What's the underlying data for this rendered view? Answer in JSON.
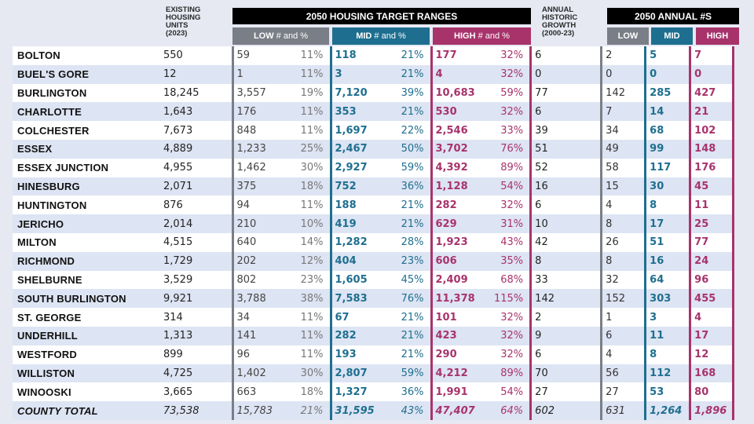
{
  "headers": {
    "existing": [
      "EXISTING",
      "HOUSING",
      "UNITS",
      "(2023)"
    ],
    "targets_band": "2050 HOUSING TARGET RANGES",
    "low_label": "LOW",
    "mid_label": "MID",
    "high_label": "HIGH",
    "num_and_pct": "# and %",
    "annual_historic": [
      "ANNUAL",
      "HISTORIC",
      "GROWTH",
      "(2000-23)"
    ],
    "annual_band": "2050 ANNUAL #S",
    "annual_low": "LOW",
    "annual_mid": "MID",
    "annual_high": "HIGH"
  },
  "colors": {
    "low": "#7a7e86",
    "mid": "#1e6f8f",
    "high": "#a8336b",
    "band": "#000000"
  },
  "rows": [
    {
      "town": "BOLTON",
      "existing": "550",
      "low": "59",
      "low_pct": "11%",
      "mid": "118",
      "mid_pct": "21%",
      "high": "177",
      "high_pct": "32%",
      "growth": "6",
      "a_low": "2",
      "a_mid": "5",
      "a_high": "7"
    },
    {
      "town": "BUEL'S GORE",
      "existing": "12",
      "low": "1",
      "low_pct": "11%",
      "mid": "3",
      "mid_pct": "21%",
      "high": "4",
      "high_pct": "32%",
      "growth": "0",
      "a_low": "0",
      "a_mid": "0",
      "a_high": "0"
    },
    {
      "town": "BURLINGTON",
      "existing": "18,245",
      "low": "3,557",
      "low_pct": "19%",
      "mid": "7,120",
      "mid_pct": "39%",
      "high": "10,683",
      "high_pct": "59%",
      "growth": "77",
      "a_low": "142",
      "a_mid": "285",
      "a_high": "427"
    },
    {
      "town": "CHARLOTTE",
      "existing": "1,643",
      "low": "176",
      "low_pct": "11%",
      "mid": "353",
      "mid_pct": "21%",
      "high": "530",
      "high_pct": "32%",
      "growth": "6",
      "a_low": "7",
      "a_mid": "14",
      "a_high": "21"
    },
    {
      "town": "COLCHESTER",
      "existing": "7,673",
      "low": "848",
      "low_pct": "11%",
      "mid": "1,697",
      "mid_pct": "22%",
      "high": "2,546",
      "high_pct": "33%",
      "growth": "39",
      "a_low": "34",
      "a_mid": "68",
      "a_high": "102"
    },
    {
      "town": "ESSEX",
      "existing": "4,889",
      "low": "1,233",
      "low_pct": "25%",
      "mid": "2,467",
      "mid_pct": "50%",
      "high": "3,702",
      "high_pct": "76%",
      "growth": "51",
      "a_low": "49",
      "a_mid": "99",
      "a_high": "148"
    },
    {
      "town": "ESSEX JUNCTION",
      "existing": "4,955",
      "low": "1,462",
      "low_pct": "30%",
      "mid": "2,927",
      "mid_pct": "59%",
      "high": "4,392",
      "high_pct": "89%",
      "growth": "52",
      "a_low": "58",
      "a_mid": "117",
      "a_high": "176"
    },
    {
      "town": "HINESBURG",
      "existing": "2,071",
      "low": "375",
      "low_pct": "18%",
      "mid": "752",
      "mid_pct": "36%",
      "high": "1,128",
      "high_pct": "54%",
      "growth": "16",
      "a_low": "15",
      "a_mid": "30",
      "a_high": "45"
    },
    {
      "town": "HUNTINGTON",
      "existing": "876",
      "low": "94",
      "low_pct": "11%",
      "mid": "188",
      "mid_pct": "21%",
      "high": "282",
      "high_pct": "32%",
      "growth": "6",
      "a_low": "4",
      "a_mid": "8",
      "a_high": "11"
    },
    {
      "town": "JERICHO",
      "existing": "2,014",
      "low": "210",
      "low_pct": "10%",
      "mid": "419",
      "mid_pct": "21%",
      "high": "629",
      "high_pct": "31%",
      "growth": "10",
      "a_low": "8",
      "a_mid": "17",
      "a_high": "25"
    },
    {
      "town": "MILTON",
      "existing": "4,515",
      "low": "640",
      "low_pct": "14%",
      "mid": "1,282",
      "mid_pct": "28%",
      "high": "1,923",
      "high_pct": "43%",
      "growth": "42",
      "a_low": "26",
      "a_mid": "51",
      "a_high": "77"
    },
    {
      "town": "RICHMOND",
      "existing": "1,729",
      "low": "202",
      "low_pct": "12%",
      "mid": "404",
      "mid_pct": "23%",
      "high": "606",
      "high_pct": "35%",
      "growth": "8",
      "a_low": "8",
      "a_mid": "16",
      "a_high": "24"
    },
    {
      "town": "SHELBURNE",
      "existing": "3,529",
      "low": "802",
      "low_pct": "23%",
      "mid": "1,605",
      "mid_pct": "45%",
      "high": "2,409",
      "high_pct": "68%",
      "growth": "33",
      "a_low": "32",
      "a_mid": "64",
      "a_high": "96"
    },
    {
      "town": "SOUTH BURLINGTON",
      "existing": "9,921",
      "low": "3,788",
      "low_pct": "38%",
      "mid": "7,583",
      "mid_pct": "76%",
      "high": "11,378",
      "high_pct": "115%",
      "growth": "142",
      "a_low": "152",
      "a_mid": "303",
      "a_high": "455"
    },
    {
      "town": "ST. GEORGE",
      "existing": "314",
      "low": "34",
      "low_pct": "11%",
      "mid": "67",
      "mid_pct": "21%",
      "high": "101",
      "high_pct": "32%",
      "growth": "2",
      "a_low": "1",
      "a_mid": "3",
      "a_high": "4"
    },
    {
      "town": "UNDERHILL",
      "existing": "1,313",
      "low": "141",
      "low_pct": "11%",
      "mid": "282",
      "mid_pct": "21%",
      "high": "423",
      "high_pct": "32%",
      "growth": "9",
      "a_low": "6",
      "a_mid": "11",
      "a_high": "17"
    },
    {
      "town": "WESTFORD",
      "existing": "899",
      "low": "96",
      "low_pct": "11%",
      "mid": "193",
      "mid_pct": "21%",
      "high": "290",
      "high_pct": "32%",
      "growth": "6",
      "a_low": "4",
      "a_mid": "8",
      "a_high": "12"
    },
    {
      "town": "WILLISTON",
      "existing": "4,725",
      "low": "1,402",
      "low_pct": "30%",
      "mid": "2,807",
      "mid_pct": "59%",
      "high": "4,212",
      "high_pct": "89%",
      "growth": "70",
      "a_low": "56",
      "a_mid": "112",
      "a_high": "168"
    },
    {
      "town": "WINOOSKI",
      "existing": "3,665",
      "low": "663",
      "low_pct": "18%",
      "mid": "1,327",
      "mid_pct": "36%",
      "high": "1,991",
      "high_pct": "54%",
      "growth": "27",
      "a_low": "27",
      "a_mid": "53",
      "a_high": "80"
    }
  ],
  "total": {
    "town": "COUNTY TOTAL",
    "existing": "73,538",
    "low": "15,783",
    "low_pct": "21%",
    "mid": "31,595",
    "mid_pct": "43%",
    "high": "47,407",
    "high_pct": "64%",
    "growth": "602",
    "a_low": "631",
    "a_mid": "1,264",
    "a_high": "1,896"
  }
}
